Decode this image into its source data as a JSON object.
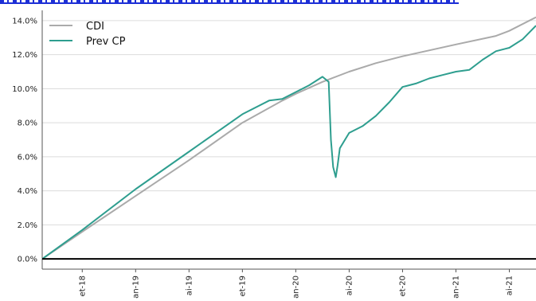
{
  "chart_data": {
    "type": "line",
    "title": "",
    "xlabel": "",
    "ylabel": "",
    "ylim": [
      -0.6,
      14.6
    ],
    "y_tick_labels": [
      "0.0%",
      "2.0%",
      "4.0%",
      "6.0%",
      "8.0%",
      "10.0%",
      "12.0%",
      "14.0%"
    ],
    "y_tick_values": [
      0,
      2,
      4,
      6,
      8,
      10,
      12,
      14
    ],
    "x_tick_labels": [
      "et-18",
      "an-19",
      "ai-19",
      "et-19",
      "an-20",
      "ai-20",
      "et-20",
      "an-21",
      "ai-21"
    ],
    "x_tick_values": [
      "2018-09",
      "2019-01",
      "2019-05",
      "2019-09",
      "2020-01",
      "2020-05",
      "2020-09",
      "2021-01",
      "2021-05"
    ],
    "x_range": [
      "2018-06",
      "2021-07"
    ],
    "grid": {
      "y": true,
      "x": false
    },
    "legend_position": "top-left",
    "colors": {
      "CDI": "#aaaaaa",
      "Prev CP": "#2e9e8f",
      "zero_line": "#000000"
    },
    "series": [
      {
        "name": "CDI",
        "points": [
          [
            "2018-06",
            0.0
          ],
          [
            "2018-09",
            1.6
          ],
          [
            "2019-01",
            3.7
          ],
          [
            "2019-05",
            5.8
          ],
          [
            "2019-09",
            8.0
          ],
          [
            "2019-12",
            9.3
          ],
          [
            "2020-01",
            9.7
          ],
          [
            "2020-03",
            10.4
          ],
          [
            "2020-05",
            11.0
          ],
          [
            "2020-07",
            11.5
          ],
          [
            "2020-09",
            11.9
          ],
          [
            "2021-01",
            12.6
          ],
          [
            "2021-04",
            13.1
          ],
          [
            "2021-05",
            13.4
          ],
          [
            "2021-07",
            14.2
          ]
        ]
      },
      {
        "name": "Prev CP",
        "points": [
          [
            "2018-06",
            0.0
          ],
          [
            "2018-09",
            1.7
          ],
          [
            "2019-01",
            4.1
          ],
          [
            "2019-05",
            6.3
          ],
          [
            "2019-09",
            8.5
          ],
          [
            "2019-11",
            9.3
          ],
          [
            "2019-12",
            9.4
          ],
          [
            "2020-01",
            9.8
          ],
          [
            "2020-02",
            10.2
          ],
          [
            "2020-03",
            10.7
          ],
          [
            "2020-03-15",
            10.4
          ],
          [
            "2020-03-20",
            7.0
          ],
          [
            "2020-03-25",
            5.4
          ],
          [
            "2020-04-01",
            4.8
          ],
          [
            "2020-04-05",
            5.5
          ],
          [
            "2020-04-10",
            6.5
          ],
          [
            "2020-05",
            7.4
          ],
          [
            "2020-06",
            7.8
          ],
          [
            "2020-07",
            8.4
          ],
          [
            "2020-08",
            9.2
          ],
          [
            "2020-09",
            10.1
          ],
          [
            "2020-10",
            10.3
          ],
          [
            "2020-11",
            10.6
          ],
          [
            "2020-12",
            10.8
          ],
          [
            "2021-01",
            11.0
          ],
          [
            "2021-02",
            11.1
          ],
          [
            "2021-03",
            11.7
          ],
          [
            "2021-04",
            12.2
          ],
          [
            "2021-05",
            12.4
          ],
          [
            "2021-06",
            12.9
          ],
          [
            "2021-07",
            13.7
          ]
        ]
      }
    ]
  }
}
